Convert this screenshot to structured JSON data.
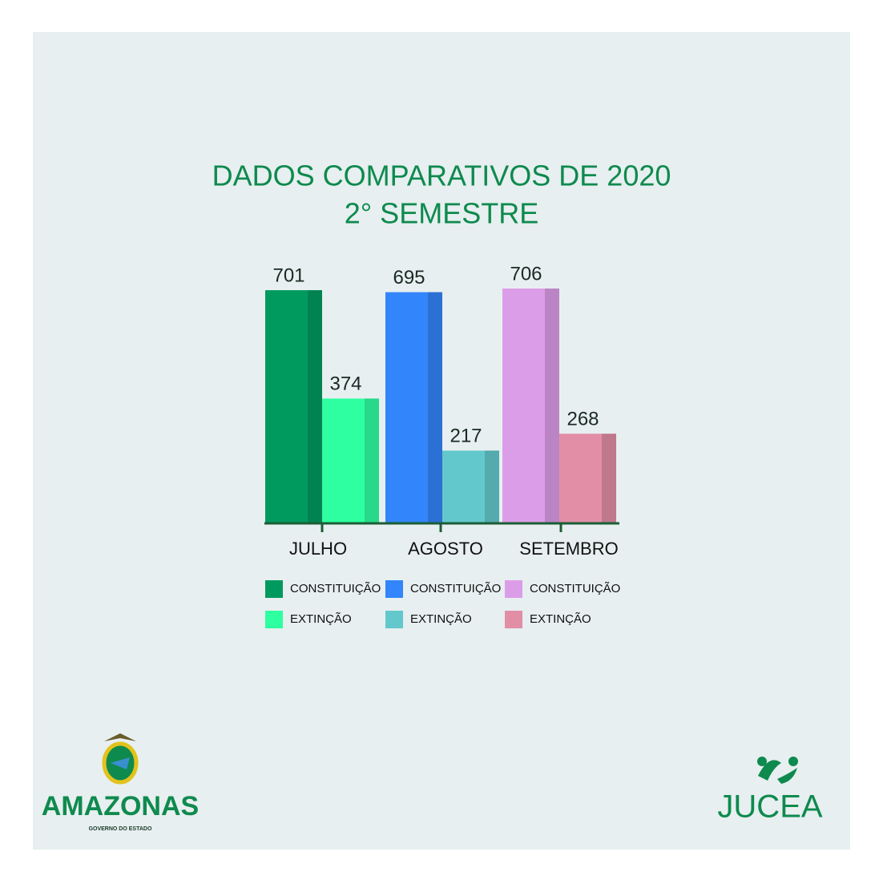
{
  "chart_data": {
    "type": "bar",
    "title": "DADOS COMPARATIVOS DE 2020",
    "subtitle": "2° SEMESTRE",
    "categories": [
      "JULHO",
      "AGOSTO",
      "SETEMBRO"
    ],
    "series": [
      {
        "name": "CONSTITUIÇÃO",
        "colors": [
          "#009a5e",
          "#3385fb",
          "#dc9de8"
        ],
        "values": [
          701,
          695,
          706
        ]
      },
      {
        "name": "EXTINÇÃO",
        "colors": [
          "#2effa0",
          "#63c8cc",
          "#e28ea6"
        ],
        "values": [
          374,
          217,
          268
        ]
      }
    ]
  },
  "logos": {
    "left": {
      "name": "AMAZONAS",
      "tagline": "GOVERNO DO ESTADO"
    },
    "right": {
      "name": "JUCEA"
    }
  }
}
